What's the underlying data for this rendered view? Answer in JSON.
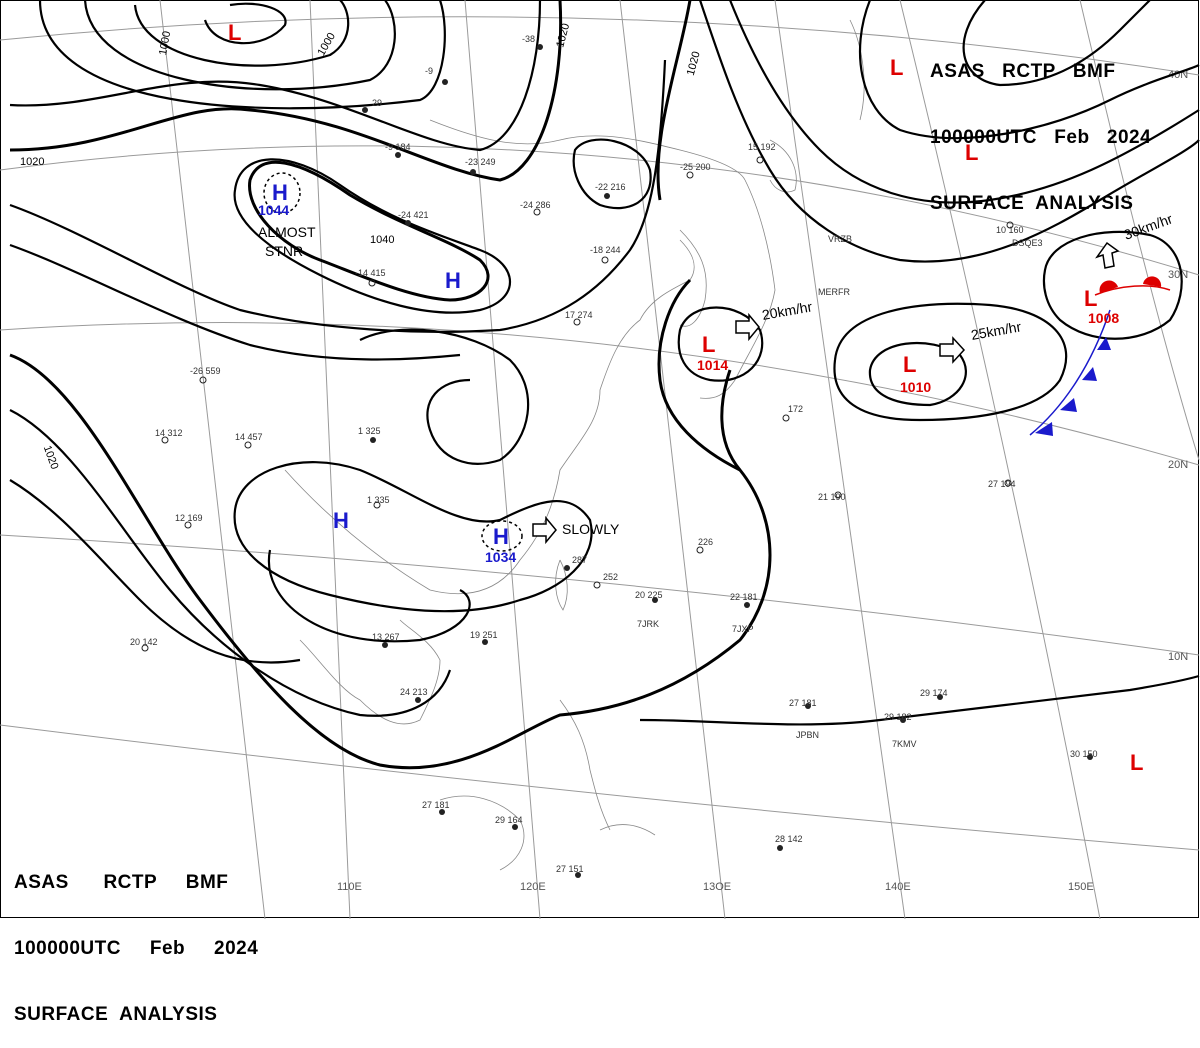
{
  "header": {
    "line1": "ASAS   RCTP   BMF",
    "line2": "100000UTC   Feb   2024",
    "line3": "SURFACE  ANALYSIS"
  },
  "footer": {
    "line1": "ASAS      RCTP     BMF",
    "line2": "100000UTC     Feb     2024",
    "line3": "SURFACE  ANALYSIS"
  },
  "grid": {
    "lon_labels": [
      "110E",
      "120E",
      "13OE",
      "140E",
      "150E"
    ],
    "lat_labels": [
      "40N",
      "30N",
      "20N",
      "10N"
    ]
  },
  "colors": {
    "high": "#1a1acc",
    "low": "#dd0000",
    "isobar": "#000000",
    "grid": "#9a9a9a",
    "land": "#888888"
  },
  "isobar_labels": [
    "1000",
    "1000",
    "1020",
    "1020",
    "1040",
    "1020",
    "1020"
  ],
  "systems": [
    {
      "type": "H",
      "value": "1044"
    },
    {
      "type": "H",
      "value": ""
    },
    {
      "type": "H",
      "value": ""
    },
    {
      "type": "H",
      "value": "1034"
    },
    {
      "type": "L",
      "value": ""
    },
    {
      "type": "L",
      "value": ""
    },
    {
      "type": "L",
      "value": ""
    },
    {
      "type": "L",
      "value": "1014"
    },
    {
      "type": "L",
      "value": "1010"
    },
    {
      "type": "L",
      "value": "1008"
    },
    {
      "type": "L",
      "value": ""
    }
  ],
  "annotations": {
    "almost": "ALMOST",
    "stnr": "STNR",
    "slowly": "SLOWLY",
    "speed1": "20km/hr",
    "speed2": "25km/hr",
    "speed3": "30km/hr"
  },
  "stations": [
    {
      "text": "-38"
    },
    {
      "text": "-9"
    },
    {
      "text": "29"
    },
    {
      "text": "-9  184"
    },
    {
      "text": "-23  249"
    },
    {
      "text": "-24  421"
    },
    {
      "text": "-24  286"
    },
    {
      "text": "-14  415"
    },
    {
      "text": "-26  559"
    },
    {
      "text": "14  312"
    },
    {
      "text": "14  457"
    },
    {
      "text": "-18  244"
    },
    {
      "text": "-22  216"
    },
    {
      "text": "-25  200"
    },
    {
      "text": "15  192"
    },
    {
      "text": "17  274"
    },
    {
      "text": "1  325"
    },
    {
      "text": "1  335"
    },
    {
      "text": "12  169"
    },
    {
      "text": "20  142"
    },
    {
      "text": "13  267"
    },
    {
      "text": "24  213"
    },
    {
      "text": "19  251"
    },
    {
      "text": "287"
    },
    {
      "text": "252"
    },
    {
      "text": "20  225"
    },
    {
      "text": "22  181"
    },
    {
      "text": "21  190"
    },
    {
      "text": "27  194"
    },
    {
      "text": "10  160"
    },
    {
      "text": "27  181"
    },
    {
      "text": "29  182"
    },
    {
      "text": "29  174"
    },
    {
      "text": "30  150"
    },
    {
      "text": "28  142"
    },
    {
      "text": "27  181"
    },
    {
      "text": "29  164"
    },
    {
      "text": "27  151"
    },
    {
      "text": "172"
    },
    {
      "text": "226"
    },
    {
      "text": "DSQE3"
    },
    {
      "text": "MERFR"
    },
    {
      "text": "7JRK"
    },
    {
      "text": "7JXP"
    },
    {
      "text": "JPBN"
    },
    {
      "text": "7KMV"
    },
    {
      "text": "VRZB"
    }
  ]
}
